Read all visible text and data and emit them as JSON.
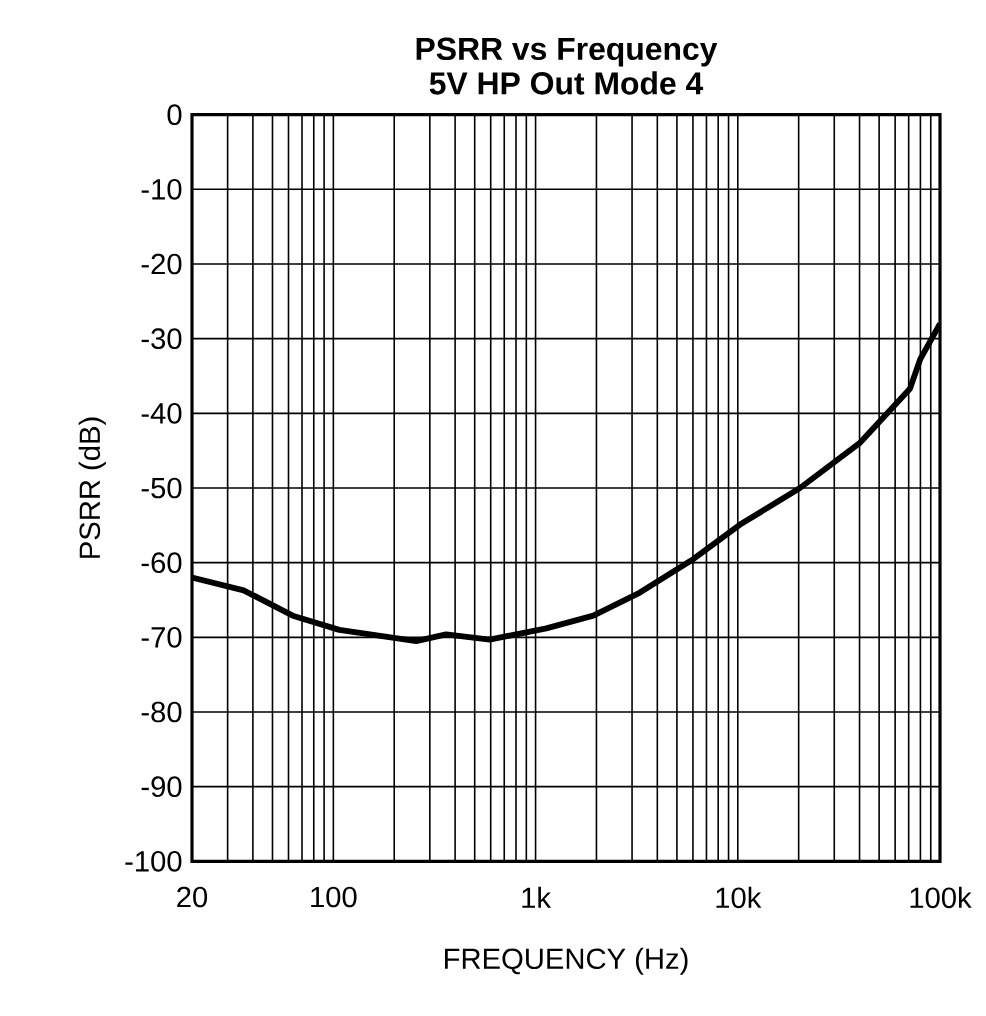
{
  "chart_data": {
    "type": "line",
    "title": "PSRR vs Frequency",
    "subtitle": "5V HP Out Mode 4",
    "xlabel": "FREQUENCY (Hz)",
    "ylabel": "PSRR (dB)",
    "log": "x",
    "grid": true,
    "marker": "none",
    "line_style": "solid",
    "xlim": [
      20,
      100000
    ],
    "ylim": [
      -100,
      0
    ],
    "xticks": [
      20,
      100,
      {
        "value": 1000,
        "label": "1k"
      },
      {
        "value": 10000,
        "label": "10k"
      },
      {
        "value": 100000,
        "label": "100k"
      }
    ],
    "yticks": [
      -100,
      -90,
      -80,
      -70,
      -60,
      -50,
      -40,
      -30,
      -20,
      -10,
      0
    ],
    "series": [
      {
        "color": "#000000",
        "x": [
          20,
          36,
          63,
          107,
          257,
          361,
          593,
          1130,
          1930,
          3280,
          6040,
          10260,
          20300,
          40000,
          71000,
          80000,
          100000
        ],
        "values": [
          -62,
          -63.7,
          -67.1,
          -69,
          -70.5,
          -69.6,
          -70.3,
          -68.8,
          -67.1,
          -64,
          -59.5,
          -54.9,
          -50,
          -44,
          -36.7,
          -32.7,
          -28
        ]
      }
    ]
  }
}
